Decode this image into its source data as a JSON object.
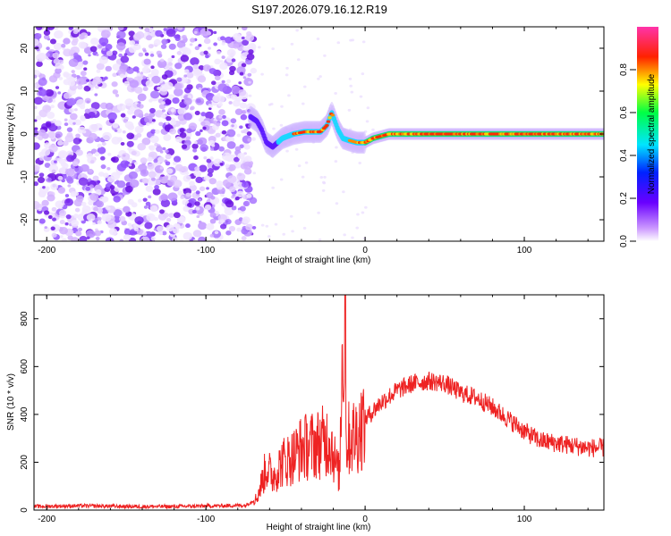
{
  "title": "S197.2026.079.16.12.R19",
  "colors": {
    "snr_line": "#ee2222",
    "axis": "#000000",
    "background": "#ffffff"
  },
  "chart_data": [
    {
      "type": "heatmap",
      "title": "S197.2026.079.16.12.R19",
      "xlabel": "Height of straight line (km)",
      "ylabel": "Frequency (Hz)",
      "xlim": [
        -208,
        150
      ],
      "ylim": [
        -25,
        25
      ],
      "x_ticks": [
        -200,
        -100,
        0,
        100
      ],
      "x_tick_labels": [
        "-200",
        "-100",
        "0",
        "100"
      ],
      "y_ticks": [
        -20,
        -10,
        0,
        10,
        20
      ],
      "y_tick_labels": [
        "-20",
        "-10",
        "0",
        "10",
        "20"
      ],
      "noise_region_x": [
        -208,
        -73
      ],
      "signal_track": {
        "x": [
          -72,
          -68,
          -65,
          -62,
          -58,
          -52,
          -45,
          -38,
          -32,
          -28,
          -24,
          -21,
          -19,
          -17,
          -14,
          -10,
          -5,
          0,
          5,
          10,
          15,
          20,
          30,
          40,
          50,
          60,
          80,
          100,
          120,
          150
        ],
        "freq": [
          4,
          3,
          1,
          -2,
          -3,
          -1,
          0,
          0.5,
          0.5,
          0.5,
          2,
          5,
          3,
          1,
          -1,
          -1.5,
          -2,
          -2,
          -1,
          -0.5,
          0,
          0,
          0,
          0,
          0,
          0,
          0,
          0,
          0,
          0
        ]
      },
      "colorbar": {
        "label": "Normalized spectral amplitude",
        "range": [
          0,
          1
        ],
        "ticks": [
          0,
          0.2,
          0.4,
          0.6,
          0.8
        ],
        "tick_labels": [
          "0.0",
          "0.2",
          "0.4",
          "0.6",
          "0.8"
        ]
      }
    },
    {
      "type": "line",
      "xlabel": "Height of straight line (km)",
      "ylabel": "SNR (10 * v/v)",
      "xlim": [
        -208,
        150
      ],
      "ylim": [
        0,
        900
      ],
      "x_ticks": [
        -200,
        -100,
        0,
        100
      ],
      "x_tick_labels": [
        "-200",
        "-100",
        "0",
        "100"
      ],
      "y_ticks": [
        0,
        200,
        400,
        600,
        800
      ],
      "y_tick_labels": [
        "0",
        "200",
        "400",
        "600",
        "800"
      ],
      "series": [
        {
          "name": "SNR",
          "x": [
            -208,
            -180,
            -150,
            -120,
            -90,
            -75,
            -68,
            -62,
            -58,
            -52,
            -46,
            -40,
            -34,
            -28,
            -22,
            -18,
            -16,
            -14,
            -12,
            -10,
            -5,
            0,
            10,
            20,
            30,
            40,
            50,
            60,
            70,
            80,
            90,
            100,
            110,
            120,
            130,
            140,
            150
          ],
          "y": [
            15,
            18,
            15,
            15,
            18,
            20,
            50,
            180,
            140,
            200,
            220,
            260,
            270,
            280,
            300,
            180,
            150,
            800,
            280,
            300,
            320,
            380,
            450,
            500,
            530,
            540,
            530,
            490,
            470,
            430,
            380,
            330,
            290,
            280,
            270,
            260,
            260
          ]
        }
      ]
    }
  ]
}
